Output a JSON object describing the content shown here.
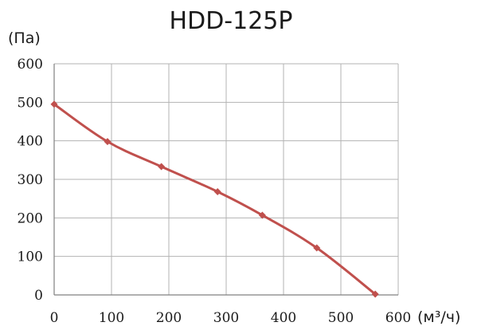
{
  "chart_data": {
    "type": "line",
    "title": "HDD-125P",
    "ylabel": "(Па)",
    "xlabel": "(м³/ч)",
    "xlim": [
      0,
      600
    ],
    "ylim": [
      0,
      600
    ],
    "xticks": [
      0,
      100,
      200,
      300,
      400,
      500,
      600
    ],
    "yticks": [
      0,
      100,
      200,
      300,
      400,
      500,
      600
    ],
    "grid": true,
    "legend": "none",
    "series": [
      {
        "color": "#c0504d",
        "marker": "diamond",
        "points": [
          {
            "x": 0,
            "y": 495
          },
          {
            "x": 93,
            "y": 398
          },
          {
            "x": 187,
            "y": 333
          },
          {
            "x": 285,
            "y": 268
          },
          {
            "x": 363,
            "y": 207
          },
          {
            "x": 458,
            "y": 122
          },
          {
            "x": 560,
            "y": 2
          }
        ]
      }
    ]
  }
}
